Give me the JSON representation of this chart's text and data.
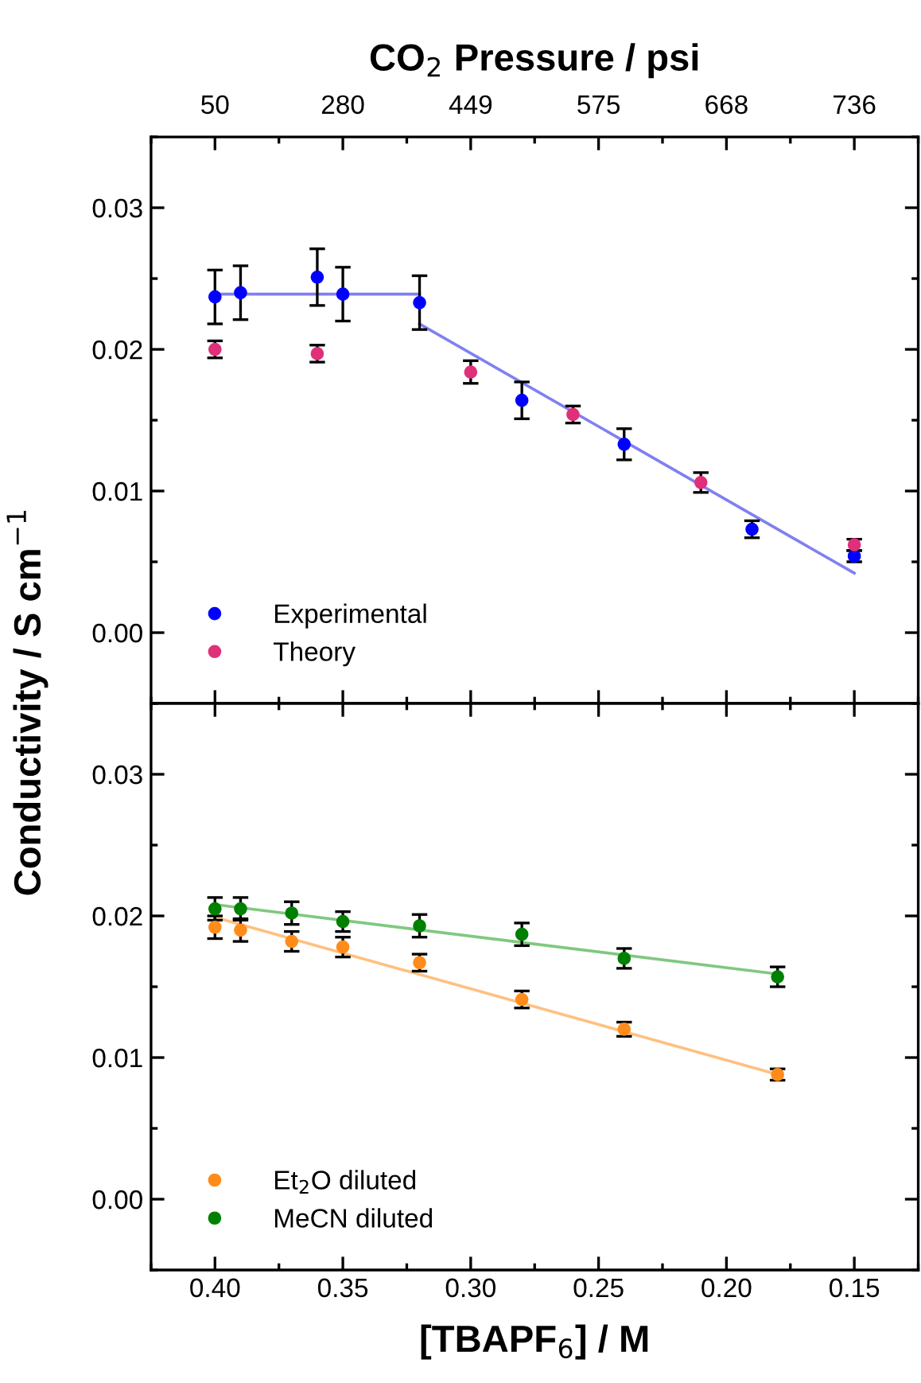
{
  "chart_data": [
    {
      "type": "scatter",
      "x2label": "CO$_{2}$ Pressure / psi",
      "ylabel": "Conductivity / S cm$^{−1}$",
      "xlim": [
        0.425,
        0.125
      ],
      "xticks": [
        0.4,
        0.35,
        0.3,
        0.25,
        0.2,
        0.15
      ],
      "annotations": [
        "50",
        "280",
        "449",
        "575",
        "668",
        "736"
      ],
      "ylim": [
        -0.005,
        0.035
      ],
      "yticks": [
        {
          "value": 0,
          "label": "0.00"
        },
        0.01,
        0.02,
        0.03
      ],
      "tick_labels": "y",
      "marker": "circle",
      "grid": false,
      "legend": "bottom left",
      "series": [
        {
          "name": "Experimental",
          "color": "#0000ff",
          "x": [
            0.4,
            0.39,
            0.36,
            0.35,
            0.32,
            0.28,
            0.24,
            0.19,
            0.15
          ],
          "values": [
            0.0237,
            0.024,
            0.0251,
            0.0239,
            0.0233,
            0.0164,
            0.0133,
            0.0073,
            0.0054
          ],
          "errors": [
            0.0019,
            0.0019,
            0.002,
            0.0019,
            0.0019,
            0.0013,
            0.0011,
            0.0006,
            0.0004
          ]
        },
        {
          "name": "Theory",
          "color": "#e0307a",
          "x": [
            0.4,
            0.36,
            0.3,
            0.26,
            0.21,
            0.15
          ],
          "values": [
            0.02,
            0.0197,
            0.0184,
            0.0154,
            0.0106,
            0.0062
          ],
          "errors": [
            0.0006,
            0.0006,
            0.0008,
            0.0006,
            0.0007,
            0.0004
          ]
        },
        {
          "type": "line",
          "marker": "none",
          "color": "#8080f0",
          "x": [
            0.4,
            0.32
          ],
          "values": [
            0.0239,
            0.0239
          ]
        },
        {
          "type": "line",
          "marker": "none",
          "color": "#8080f0",
          "x": [
            0.32,
            0.15
          ],
          "values": [
            0.0218,
            0.0042
          ]
        }
      ]
    },
    {
      "type": "scatter",
      "xlabel": "[TBAPF$_{6}$] / M",
      "xlim": [
        0.425,
        0.125
      ],
      "xticks": [
        {
          "value": 0.4,
          "label": "0.40"
        },
        0.35,
        {
          "value": 0.3,
          "label": "0.30"
        },
        0.25,
        {
          "value": 0.2,
          "label": "0.20"
        },
        0.15
      ],
      "ylim": [
        -0.005,
        0.035
      ],
      "yticks": [
        {
          "value": 0,
          "label": "0.00"
        },
        0.01,
        0.02,
        0.03
      ],
      "marker": "circle",
      "grid": false,
      "legend": "bottom left",
      "series": [
        {
          "type": "line",
          "marker": "none",
          "color": "#ffc080",
          "x": [
            0.4,
            0.18
          ],
          "values": [
            0.0199,
            0.0088
          ]
        },
        {
          "type": "line",
          "marker": "none",
          "color": "#80c880",
          "x": [
            0.4,
            0.18
          ],
          "values": [
            0.0208,
            0.0159
          ]
        },
        {
          "name": "Et$_{2}$O diluted",
          "color": "#ff8c1a",
          "x": [
            0.4,
            0.39,
            0.37,
            0.35,
            0.32,
            0.28,
            0.24,
            0.18
          ],
          "values": [
            0.0192,
            0.019,
            0.0182,
            0.0178,
            0.0167,
            0.0141,
            0.012,
            0.0088
          ],
          "errors": [
            0.0008,
            0.0008,
            0.0007,
            0.0007,
            0.0006,
            0.0006,
            0.0005,
            0.0004
          ]
        },
        {
          "name": "MeCN diluted",
          "color": "#008000",
          "x": [
            0.4,
            0.39,
            0.37,
            0.35,
            0.32,
            0.28,
            0.24,
            0.18
          ],
          "values": [
            0.0205,
            0.0205,
            0.0202,
            0.0196,
            0.0193,
            0.0187,
            0.017,
            0.0157
          ],
          "errors": [
            0.0008,
            0.0008,
            0.0008,
            0.0007,
            0.0008,
            0.0008,
            0.0007,
            0.0007
          ]
        }
      ]
    }
  ]
}
